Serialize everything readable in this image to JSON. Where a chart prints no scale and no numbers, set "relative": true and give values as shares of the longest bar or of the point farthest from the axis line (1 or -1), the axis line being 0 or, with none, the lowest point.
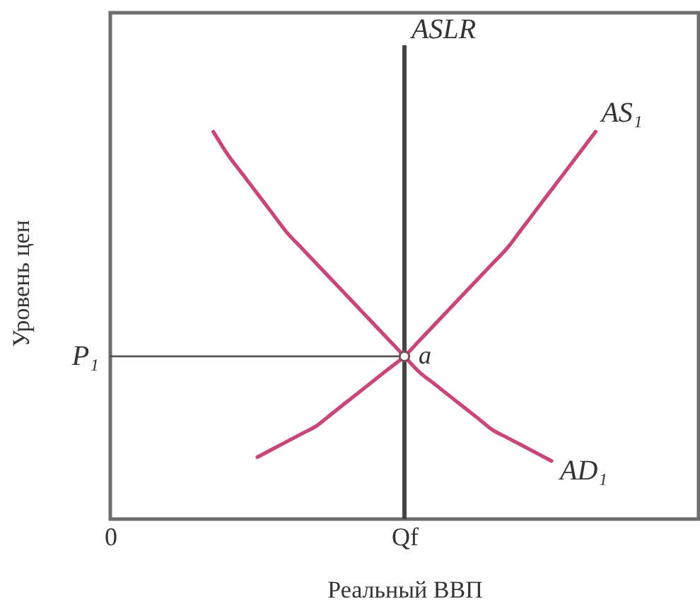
{
  "chart_data": {
    "type": "line",
    "relative": true,
    "xlabel": "Реальный ВВП",
    "ylabel": "Уровень цен",
    "categories": [
      "0",
      null,
      null,
      null,
      null,
      null,
      null,
      null,
      null,
      null,
      null,
      null,
      null,
      null,
      null,
      null,
      null,
      null,
      null,
      null,
      "Qf",
      null,
      null,
      null,
      null,
      null,
      null,
      null,
      null,
      null,
      null,
      null,
      null,
      null,
      null,
      null,
      null,
      null,
      null,
      null,
      null
    ],
    "series": [
      {
        "name": "P₁",
        "color": "#555555",
        "values": [
          0.42,
          0.42,
          0.42,
          0.42,
          0.42,
          0.42,
          0.42,
          0.42,
          0.42,
          0.42,
          0.42,
          0.42,
          0.42,
          0.42,
          0.42,
          0.42,
          0.42,
          0.42,
          0.42,
          0.42,
          0.42,
          null,
          null,
          null,
          null,
          null,
          null,
          null,
          null,
          null,
          null,
          null,
          null,
          null,
          null,
          null,
          null,
          null,
          null,
          null,
          null
        ]
      },
      {
        "name": "AS₁",
        "color": "#c8467a",
        "values": [
          null,
          null,
          null,
          null,
          null,
          null,
          null,
          null,
          null,
          null,
          0.16,
          0.18,
          0.2,
          0.22,
          0.24,
          0.27,
          0.3,
          0.33,
          0.36,
          0.39,
          0.42,
          0.46,
          0.5,
          0.54,
          0.58,
          0.62,
          0.66,
          0.7,
          0.75,
          0.8,
          0.85,
          0.9,
          0.95,
          1.0,
          null,
          null,
          null,
          null,
          null,
          null,
          null
        ]
      },
      {
        "name": "AD₁",
        "color": "#c8467a",
        "values": [
          null,
          null,
          null,
          null,
          null,
          null,
          null,
          1.0,
          0.94,
          0.89,
          0.84,
          0.79,
          0.74,
          0.7,
          0.66,
          0.62,
          0.58,
          0.54,
          0.5,
          0.46,
          0.42,
          0.38,
          0.35,
          0.32,
          0.29,
          0.26,
          0.23,
          0.21,
          0.19,
          0.17,
          0.15,
          null,
          null,
          null,
          null,
          null,
          null,
          null,
          null,
          null,
          null
        ]
      },
      {
        "name": "a",
        "type": "scatter",
        "marker": "circle",
        "color": "#ffffff",
        "values": [
          null,
          null,
          null,
          null,
          null,
          null,
          null,
          null,
          null,
          null,
          null,
          null,
          null,
          null,
          null,
          null,
          null,
          null,
          null,
          null,
          0.42,
          null,
          null,
          null,
          null,
          null,
          null,
          null,
          null,
          null,
          null,
          null,
          null,
          null,
          null,
          null,
          null,
          null,
          null,
          null,
          null
        ]
      }
    ],
    "ref_lines": [
      {
        "axis": "x",
        "value": "Qf",
        "label": "ASLR",
        "color": "#454545"
      }
    ]
  }
}
